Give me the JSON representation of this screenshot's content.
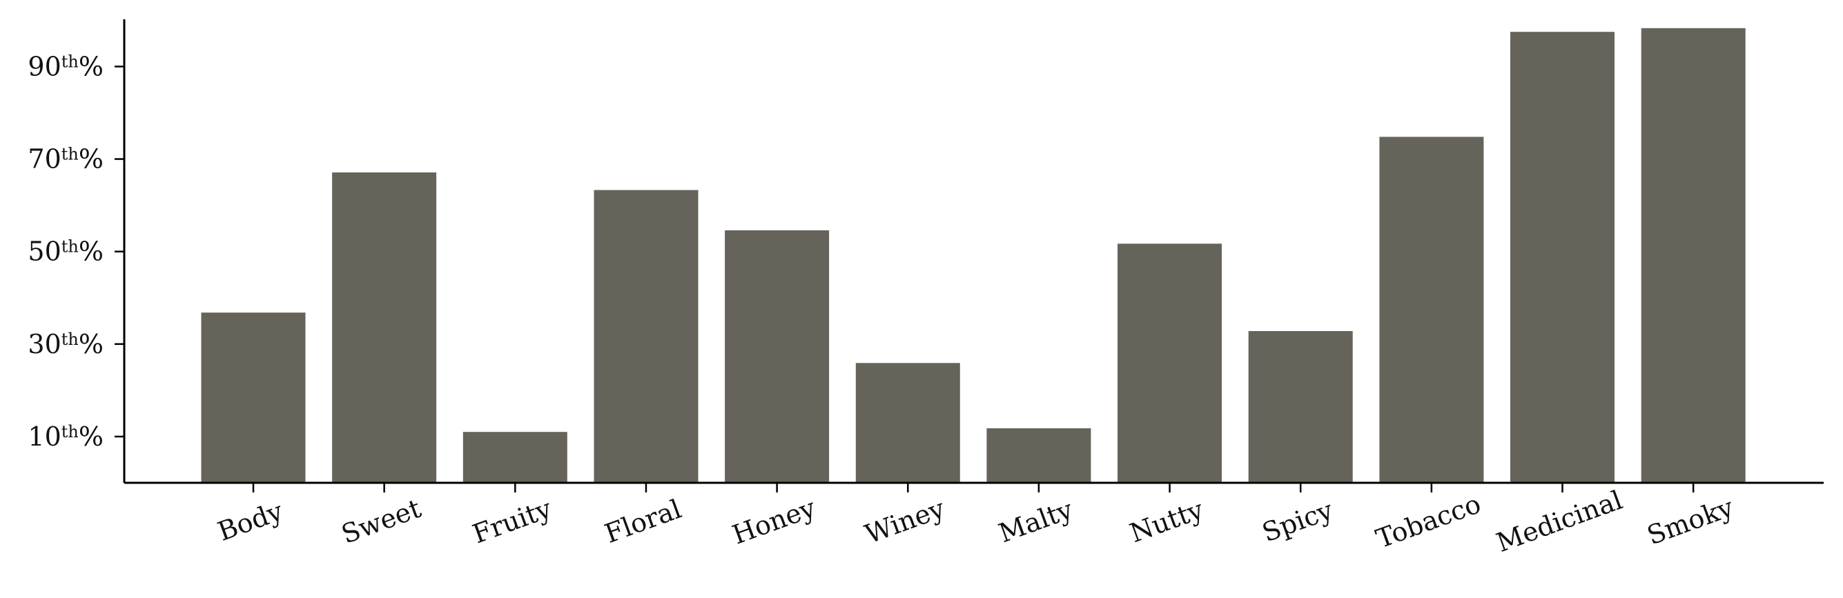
{
  "chart_data": {
    "type": "bar",
    "title": "",
    "xlabel": "",
    "ylabel": "",
    "categories": [
      "Body",
      "Sweet",
      "Fruity",
      "Floral",
      "Honey",
      "Winey",
      "Malty",
      "Nutty",
      "Spicy",
      "Tobacco",
      "Medicinal",
      "Smoky"
    ],
    "values": [
      36.8,
      67.1,
      11.0,
      63.3,
      54.6,
      25.9,
      11.8,
      51.7,
      32.8,
      74.8,
      97.5,
      98.3
    ],
    "ylim": [
      0,
      100
    ],
    "yticks": [
      {
        "value": 10,
        "base": "10",
        "sup": "th",
        "suffix": "%"
      },
      {
        "value": 30,
        "base": "30",
        "sup": "th",
        "suffix": "%"
      },
      {
        "value": 50,
        "base": "50",
        "sup": "th",
        "suffix": "%"
      },
      {
        "value": 70,
        "base": "70",
        "sup": "th",
        "suffix": "%"
      },
      {
        "value": 90,
        "base": "90",
        "sup": "th",
        "suffix": "%"
      }
    ],
    "bar_color": "#66645a",
    "grid": false,
    "legend": "none",
    "xtick_rotation_deg": -20
  }
}
